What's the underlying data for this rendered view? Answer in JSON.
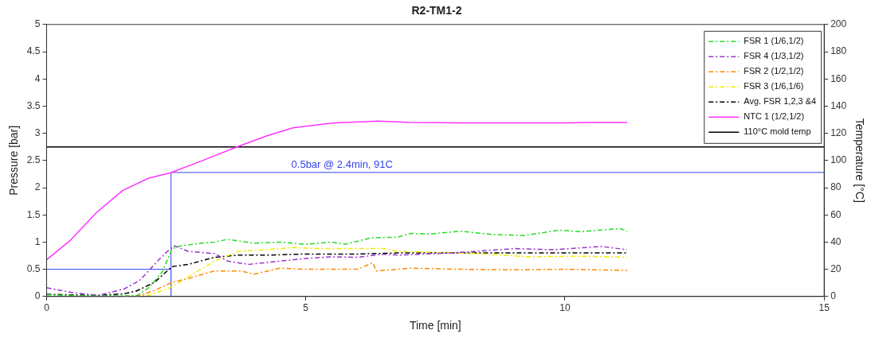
{
  "chart_data": {
    "type": "line",
    "title": "R2-TM1-2",
    "xlabel": "Time [min]",
    "ylabel": "Pressure [bar]",
    "y2label": "Temperature [°C]",
    "xlim": [
      0,
      15
    ],
    "xticks": [
      0,
      5,
      10,
      15
    ],
    "ylim": [
      0,
      5
    ],
    "yticks": [
      0,
      0.5,
      1,
      1.5,
      2,
      2.5,
      3,
      3.5,
      4,
      4.5,
      5
    ],
    "y2lim": [
      0,
      200
    ],
    "y2ticks": [
      0,
      20,
      40,
      60,
      80,
      100,
      120,
      140,
      160,
      180,
      200
    ],
    "grid": false,
    "legend": "top right",
    "marker": "none",
    "annotations": [
      {
        "text": "0.5bar @ 2.4min, 91C",
        "x": 5.7,
        "y": 2.28
      }
    ],
    "series": [
      {
        "name": "FSR 1 (1/6,1/2)",
        "color": "#22dd22",
        "line_style": "dashed",
        "x": [
          0,
          0.5,
          1,
          1.5,
          1.73,
          1.97,
          2.23,
          2.42,
          2.58,
          2.98,
          3.24,
          3.49,
          4,
          4.5,
          5,
          5.5,
          5.76,
          6.27,
          6.77,
          7.03,
          7.42,
          7.98,
          8.6,
          9.2,
          9.9,
          10.3,
          11.06,
          11.2
        ],
        "values": [
          0.03,
          0.02,
          0.01,
          0.01,
          0.01,
          0.16,
          0.45,
          0.88,
          0.93,
          0.98,
          1,
          1.05,
          0.98,
          1,
          0.96,
          1,
          0.96,
          1.08,
          1.09,
          1.16,
          1.15,
          1.2,
          1.14,
          1.12,
          1.22,
          1.19,
          1.25,
          1.2
        ]
      },
      {
        "name": "FSR 4 (1/3,1/2)",
        "color": "#9933cc",
        "line_style": "dashed",
        "x": [
          0,
          0.5,
          1,
          1.5,
          1.8,
          2.18,
          2.33,
          2.47,
          2.73,
          3.24,
          3.49,
          3.9,
          4.5,
          5,
          5.5,
          6,
          6.5,
          6.77,
          7.8,
          9.05,
          9.8,
          10.7,
          11.2
        ],
        "values": [
          0.16,
          0.07,
          0.02,
          0.14,
          0.3,
          0.69,
          0.83,
          0.93,
          0.83,
          0.79,
          0.65,
          0.59,
          0.65,
          0.7,
          0.73,
          0.72,
          0.78,
          0.76,
          0.8,
          0.88,
          0.86,
          0.92,
          0.86
        ]
      },
      {
        "name": "FSR 2 (1/2,1/2)",
        "color": "#ff8800",
        "line_style": "dashed",
        "x": [
          1.5,
          1.8,
          2.08,
          2.42,
          2.73,
          2.98,
          3.24,
          3.74,
          4,
          4.5,
          5,
          5.5,
          6,
          6.29,
          6.36,
          7.03,
          8,
          9,
          10,
          11.2
        ],
        "values": [
          0,
          0.02,
          0.11,
          0.26,
          0.33,
          0.4,
          0.47,
          0.47,
          0.41,
          0.52,
          0.5,
          0.5,
          0.5,
          0.62,
          0.47,
          0.52,
          0.5,
          0.49,
          0.5,
          0.48
        ]
      },
      {
        "name": "FSR 3 (1/6,1/6)",
        "color": "#eeee00",
        "line_style": "dashed",
        "x": [
          1.5,
          2,
          2.38,
          2.73,
          3.24,
          3.7,
          4.24,
          4.75,
          5.26,
          6,
          6.5,
          6.77,
          8.3,
          9.3,
          10.3,
          11.2
        ],
        "values": [
          0,
          0.03,
          0.16,
          0.36,
          0.65,
          0.83,
          0.86,
          0.9,
          0.88,
          0.88,
          0.88,
          0.83,
          0.79,
          0.73,
          0.74,
          0.72
        ]
      },
      {
        "name": "Avg. FSR 1,2,3 &4",
        "color": "#000000",
        "line_style": "dashed",
        "x": [
          0,
          0.5,
          1,
          1.5,
          1.73,
          2.08,
          2.42,
          2.73,
          3.24,
          3.7,
          4.24,
          5,
          6,
          6.77,
          8.8,
          10,
          11.2
        ],
        "values": [
          0.04,
          0.03,
          0.02,
          0.05,
          0.1,
          0.26,
          0.55,
          0.59,
          0.72,
          0.76,
          0.76,
          0.78,
          0.78,
          0.8,
          0.8,
          0.8,
          0.8
        ]
      },
      {
        "name": "NTC 1 (1/2,1/2)",
        "color": "#ff33ff",
        "line_style": "solid",
        "axis": "y2",
        "x": [
          0,
          0.45,
          0.97,
          1.47,
          1.97,
          2.39,
          2.98,
          3.67,
          4.24,
          4.75,
          5.5,
          6.4,
          7,
          8,
          9,
          10,
          10.5,
          11.2
        ],
        "values": [
          27,
          41,
          62,
          78,
          87,
          91,
          99.5,
          110,
          118,
          124,
          127.5,
          129,
          128,
          127.6,
          127.6,
          127.6,
          128,
          128
        ]
      },
      {
        "name": "110°C mold temp",
        "color": "#000000",
        "line_style": "solid",
        "axis": "y2",
        "x": [
          0,
          15
        ],
        "values": [
          110,
          110
        ]
      },
      {
        "color": "#3344ee",
        "line_style": "solid",
        "x": [
          0,
          2.4,
          2.4,
          2.4,
          15
        ],
        "values": [
          0.5,
          0.5,
          0,
          2.28,
          2.28
        ]
      }
    ]
  }
}
